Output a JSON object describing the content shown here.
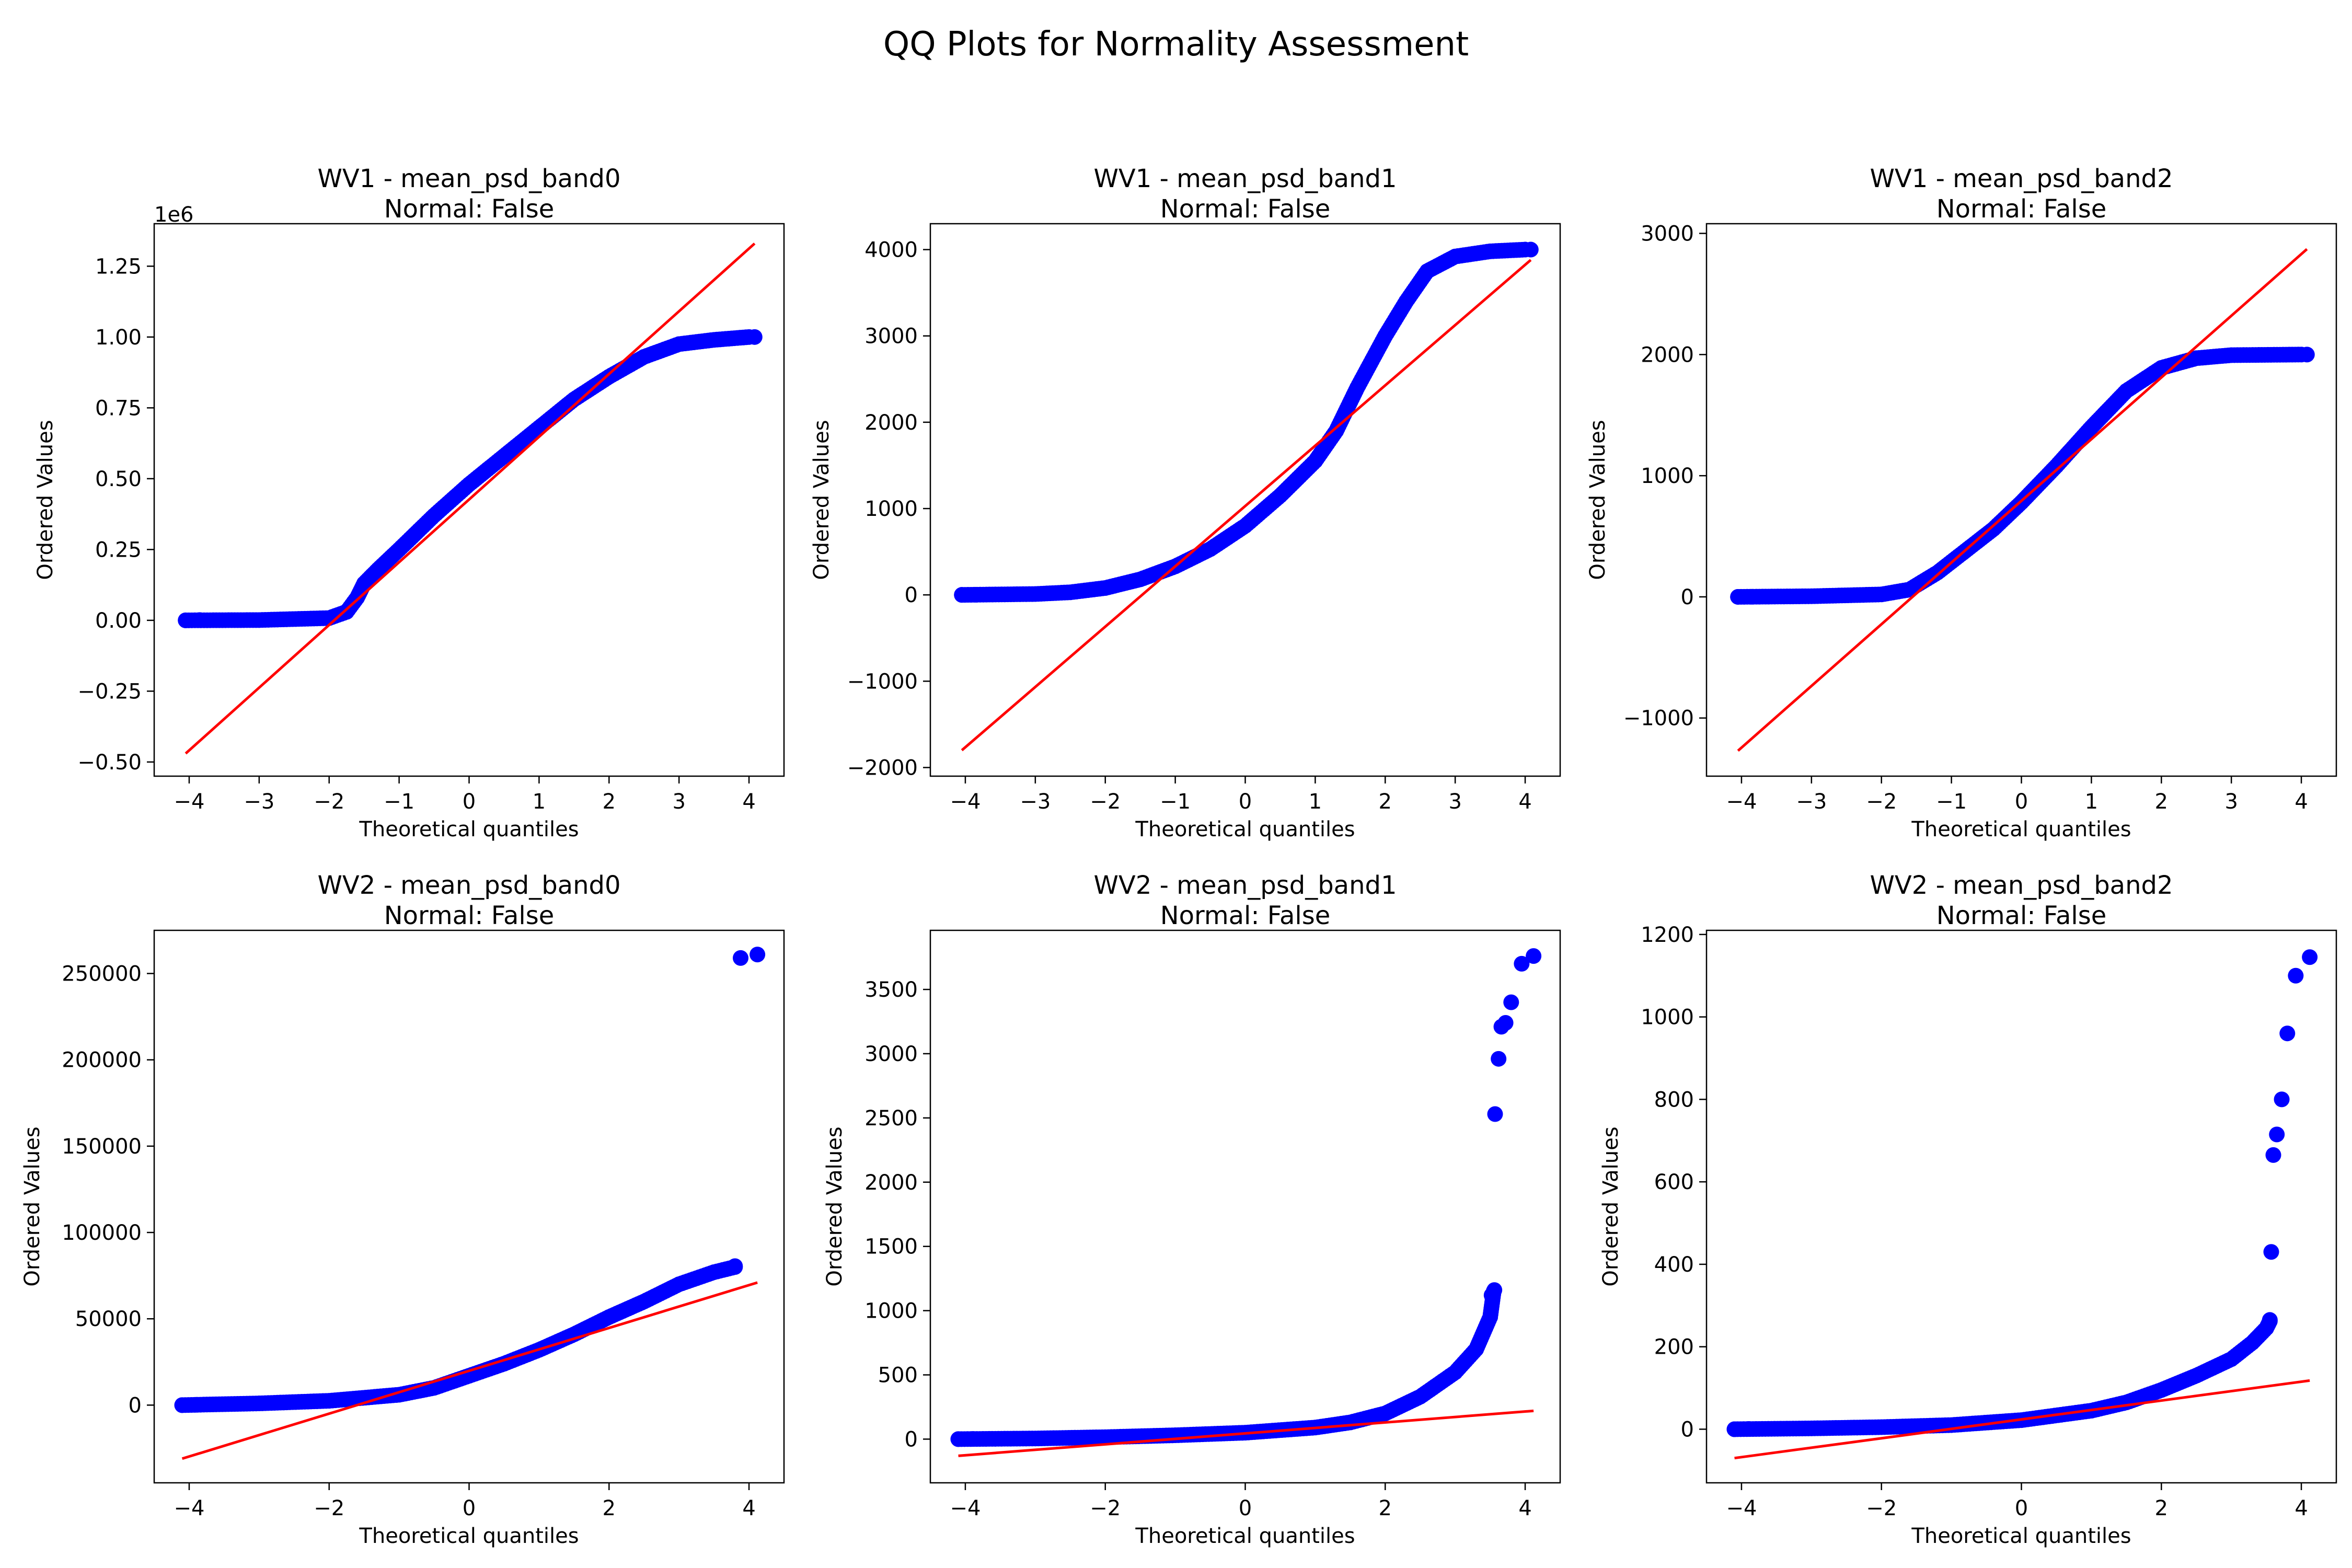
{
  "figure": {
    "title": "QQ Plots for Normality Assessment"
  },
  "chart_data": [
    {
      "type": "scatter",
      "title": "WV1 - mean_psd_band0",
      "subtitle": "Normal: False",
      "xlabel": "Theoretical quantiles",
      "ylabel": "Ordered Values",
      "offset_label": "1e6",
      "xlim": [
        -4.5,
        4.5
      ],
      "ylim": [
        -0.55,
        1.4
      ],
      "xticks": [
        -4,
        -3,
        -2,
        -1,
        0,
        1,
        2,
        3,
        4
      ],
      "xtick_labels": [
        "−4",
        "−3",
        "−2",
        "−1",
        "0",
        "1",
        "2",
        "3",
        "4"
      ],
      "yticks": [
        -0.5,
        -0.25,
        0,
        0.25,
        0.5,
        0.75,
        1.0,
        1.25
      ],
      "ytick_labels": [
        "−0.50",
        "−0.25",
        "0.00",
        "0.25",
        "0.50",
        "0.75",
        "1.00",
        "1.25"
      ],
      "series": [
        {
          "kind": "points",
          "color": "#0000ff",
          "curve": [
            [
              -4.05,
              0.0
            ],
            [
              -3.0,
              0.001
            ],
            [
              -2.0,
              0.008
            ],
            [
              -1.75,
              0.03
            ],
            [
              -1.6,
              0.08
            ],
            [
              -1.5,
              0.13
            ],
            [
              -1.3,
              0.18
            ],
            [
              -1.0,
              0.25
            ],
            [
              -0.5,
              0.37
            ],
            [
              0.0,
              0.48
            ],
            [
              0.5,
              0.58
            ],
            [
              1.0,
              0.68
            ],
            [
              1.5,
              0.78
            ],
            [
              2.0,
              0.86
            ],
            [
              2.5,
              0.93
            ],
            [
              3.0,
              0.975
            ],
            [
              3.5,
              0.99
            ],
            [
              4.0,
              1.0
            ]
          ],
          "outliers": [
            [
              -4.05,
              0.0
            ],
            [
              -3.85,
              0.001
            ],
            [
              4.08,
              1.0
            ]
          ]
        },
        {
          "kind": "line",
          "color": "#ff0000",
          "from": [
            -4.05,
            -0.47
          ],
          "to": [
            4.08,
            1.33
          ]
        }
      ]
    },
    {
      "type": "scatter",
      "title": "WV1 - mean_psd_band1",
      "subtitle": "Normal: False",
      "xlabel": "Theoretical quantiles",
      "ylabel": "Ordered Values",
      "xlim": [
        -4.5,
        4.5
      ],
      "ylim": [
        -2100,
        4300
      ],
      "xticks": [
        -4,
        -3,
        -2,
        -1,
        0,
        1,
        2,
        3,
        4
      ],
      "xtick_labels": [
        "−4",
        "−3",
        "−2",
        "−1",
        "0",
        "1",
        "2",
        "3",
        "4"
      ],
      "yticks": [
        -2000,
        -1000,
        0,
        1000,
        2000,
        3000,
        4000
      ],
      "ytick_labels": [
        "−2000",
        "−1000",
        "0",
        "1000",
        "2000",
        "3000",
        "4000"
      ],
      "series": [
        {
          "kind": "points",
          "color": "#0000ff",
          "curve": [
            [
              -4.05,
              0
            ],
            [
              -3.0,
              10
            ],
            [
              -2.5,
              30
            ],
            [
              -2.0,
              80
            ],
            [
              -1.5,
              180
            ],
            [
              -1.0,
              330
            ],
            [
              -0.5,
              530
            ],
            [
              0.0,
              800
            ],
            [
              0.5,
              1150
            ],
            [
              1.0,
              1550
            ],
            [
              1.3,
              1900
            ],
            [
              1.6,
              2400
            ],
            [
              2.0,
              3000
            ],
            [
              2.3,
              3400
            ],
            [
              2.6,
              3750
            ],
            [
              3.0,
              3920
            ],
            [
              3.5,
              3980
            ],
            [
              4.0,
              4000
            ]
          ],
          "outliers": [
            [
              -4.05,
              0
            ],
            [
              -3.85,
              2
            ],
            [
              4.08,
              4000
            ]
          ]
        },
        {
          "kind": "line",
          "color": "#ff0000",
          "from": [
            -4.05,
            -1800
          ],
          "to": [
            4.08,
            3880
          ]
        }
      ]
    },
    {
      "type": "scatter",
      "title": "WV1 - mean_psd_band2",
      "subtitle": "Normal: False",
      "xlabel": "Theoretical quantiles",
      "ylabel": "Ordered Values",
      "xlim": [
        -4.5,
        4.5
      ],
      "ylim": [
        -1480,
        3080
      ],
      "xticks": [
        -4,
        -3,
        -2,
        -1,
        0,
        1,
        2,
        3,
        4
      ],
      "xtick_labels": [
        "−4",
        "−3",
        "−2",
        "−1",
        "0",
        "1",
        "2",
        "3",
        "4"
      ],
      "yticks": [
        -1000,
        0,
        1000,
        2000,
        3000
      ],
      "ytick_labels": [
        "−1000",
        "0",
        "1000",
        "2000",
        "3000"
      ],
      "series": [
        {
          "kind": "points",
          "color": "#0000ff",
          "curve": [
            [
              -4.05,
              0
            ],
            [
              -3.0,
              5
            ],
            [
              -2.0,
              20
            ],
            [
              -1.6,
              60
            ],
            [
              -1.2,
              200
            ],
            [
              -0.8,
              380
            ],
            [
              -0.4,
              560
            ],
            [
              0.0,
              780
            ],
            [
              0.5,
              1080
            ],
            [
              1.0,
              1400
            ],
            [
              1.5,
              1700
            ],
            [
              2.0,
              1890
            ],
            [
              2.5,
              1970
            ],
            [
              3.0,
              1995
            ],
            [
              4.0,
              2000
            ]
          ],
          "outliers": [
            [
              -4.05,
              0
            ],
            [
              -3.85,
              1
            ],
            [
              4.08,
              2000
            ]
          ]
        },
        {
          "kind": "line",
          "color": "#ff0000",
          "from": [
            -4.05,
            -1270
          ],
          "to": [
            4.08,
            2870
          ]
        }
      ]
    },
    {
      "type": "scatter",
      "title": "WV2 - mean_psd_band0",
      "subtitle": "Normal: False",
      "xlabel": "Theoretical quantiles",
      "ylabel": "Ordered Values",
      "xlim": [
        -4.5,
        4.5
      ],
      "ylim": [
        -45000,
        275000
      ],
      "xticks": [
        -4,
        -2,
        0,
        2,
        4
      ],
      "xtick_labels": [
        "−4",
        "−2",
        "0",
        "2",
        "4"
      ],
      "yticks": [
        0,
        50000,
        100000,
        150000,
        200000,
        250000
      ],
      "ytick_labels": [
        "0",
        "50000",
        "100000",
        "150000",
        "200000",
        "250000"
      ],
      "series": [
        {
          "kind": "points",
          "color": "#0000ff",
          "curve": [
            [
              -4.1,
              0
            ],
            [
              -3.0,
              1000
            ],
            [
              -2.0,
              2500
            ],
            [
              -1.0,
              6000
            ],
            [
              -0.5,
              10000
            ],
            [
              0.0,
              17000
            ],
            [
              0.5,
              24000
            ],
            [
              1.0,
              32000
            ],
            [
              1.5,
              41000
            ],
            [
              2.0,
              51000
            ],
            [
              2.5,
              60000
            ],
            [
              3.0,
              70000
            ],
            [
              3.5,
              77000
            ],
            [
              3.8,
              80000
            ]
          ],
          "outliers": [
            [
              -4.1,
              0
            ],
            [
              -3.9,
              200
            ],
            [
              3.8,
              80500
            ],
            [
              3.88,
              259000
            ],
            [
              4.12,
              261000
            ]
          ]
        },
        {
          "kind": "line",
          "color": "#ff0000",
          "from": [
            -4.1,
            -31000
          ],
          "to": [
            4.12,
            71000
          ]
        }
      ]
    },
    {
      "type": "scatter",
      "title": "WV2 - mean_psd_band1",
      "subtitle": "Normal: False",
      "xlabel": "Theoretical quantiles",
      "ylabel": "Ordered Values",
      "xlim": [
        -4.5,
        4.5
      ],
      "ylim": [
        -340,
        3960
      ],
      "xticks": [
        -4,
        -2,
        0,
        2,
        4
      ],
      "xtick_labels": [
        "−4",
        "−2",
        "0",
        "2",
        "4"
      ],
      "yticks": [
        0,
        500,
        1000,
        1500,
        2000,
        2500,
        3000,
        3500
      ],
      "ytick_labels": [
        "0",
        "500",
        "1000",
        "1500",
        "2000",
        "2500",
        "3000",
        "3500"
      ],
      "series": [
        {
          "kind": "points",
          "color": "#0000ff",
          "curve": [
            [
              -4.1,
              0
            ],
            [
              -3.0,
              5
            ],
            [
              -2.0,
              15
            ],
            [
              -1.0,
              30
            ],
            [
              0.0,
              50
            ],
            [
              1.0,
              90
            ],
            [
              1.5,
              130
            ],
            [
              2.0,
              200
            ],
            [
              2.5,
              330
            ],
            [
              3.0,
              520
            ],
            [
              3.3,
              700
            ],
            [
              3.5,
              950
            ],
            [
              3.55,
              1150
            ]
          ],
          "outliers": [
            [
              -4.1,
              0
            ],
            [
              -3.9,
              1
            ],
            [
              3.52,
              1120
            ],
            [
              3.56,
              1160
            ],
            [
              3.57,
              2530
            ],
            [
              3.62,
              2960
            ],
            [
              3.66,
              3210
            ],
            [
              3.72,
              3240
            ],
            [
              3.8,
              3400
            ],
            [
              3.95,
              3700
            ],
            [
              4.12,
              3760
            ]
          ]
        },
        {
          "kind": "line",
          "color": "#ff0000",
          "from": [
            -4.1,
            -130
          ],
          "to": [
            4.12,
            220
          ]
        }
      ]
    },
    {
      "type": "scatter",
      "title": "WV2 - mean_psd_band2",
      "subtitle": "Normal: False",
      "xlabel": "Theoretical quantiles",
      "ylabel": "Ordered Values",
      "xlim": [
        -4.5,
        4.5
      ],
      "ylim": [
        -130,
        1210
      ],
      "xticks": [
        -4,
        -2,
        0,
        2,
        4
      ],
      "xtick_labels": [
        "−4",
        "−2",
        "0",
        "2",
        "4"
      ],
      "yticks": [
        0,
        200,
        400,
        600,
        800,
        1000,
        1200
      ],
      "ytick_labels": [
        "0",
        "200",
        "400",
        "600",
        "800",
        "1000",
        "1200"
      ],
      "series": [
        {
          "kind": "points",
          "color": "#0000ff",
          "curve": [
            [
              -4.1,
              0
            ],
            [
              -3.0,
              2
            ],
            [
              -2.0,
              5
            ],
            [
              -1.0,
              10
            ],
            [
              0.0,
              22
            ],
            [
              1.0,
              45
            ],
            [
              1.5,
              65
            ],
            [
              2.0,
              95
            ],
            [
              2.5,
              130
            ],
            [
              3.0,
              170
            ],
            [
              3.3,
              210
            ],
            [
              3.5,
              245
            ],
            [
              3.55,
              262
            ]
          ],
          "outliers": [
            [
              -4.1,
              0
            ],
            [
              -3.9,
              0.5
            ],
            [
              3.55,
              265
            ],
            [
              3.57,
              430
            ],
            [
              3.6,
              665
            ],
            [
              3.65,
              715
            ],
            [
              3.72,
              800
            ],
            [
              3.8,
              960
            ],
            [
              3.92,
              1100
            ],
            [
              4.12,
              1145
            ]
          ]
        },
        {
          "kind": "line",
          "color": "#ff0000",
          "from": [
            -4.1,
            -70
          ],
          "to": [
            4.12,
            118
          ]
        }
      ]
    }
  ]
}
